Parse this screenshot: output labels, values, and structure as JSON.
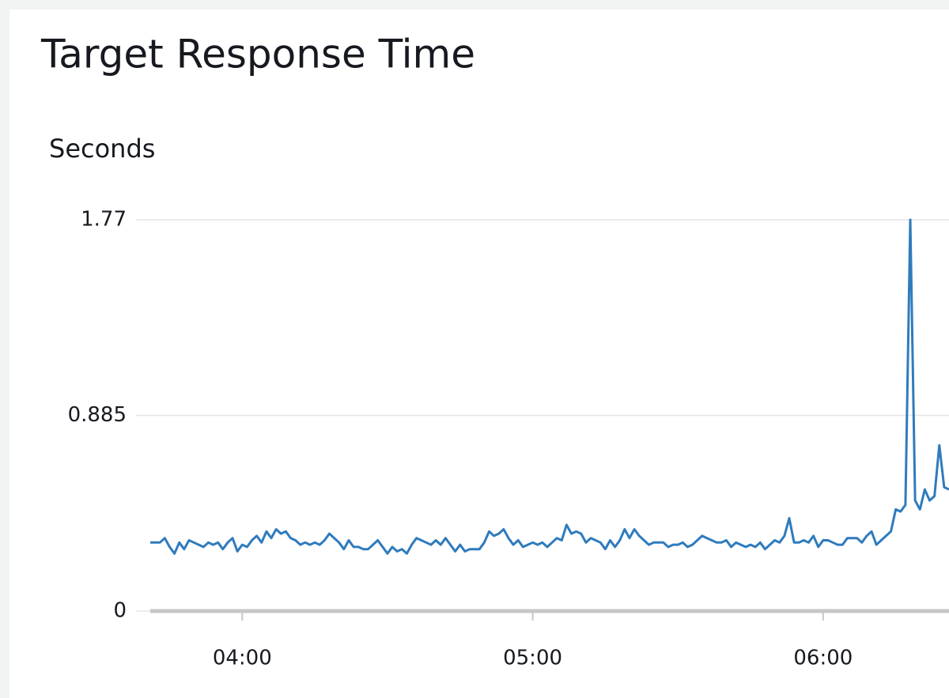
{
  "chart_data": {
    "type": "line",
    "title": "Target Response Time",
    "ylabel": "Seconds",
    "color": "#2f7bbd",
    "ylim": [
      0,
      1.77
    ],
    "yticks": [
      0,
      0.885,
      1.77
    ],
    "grid": true,
    "xlim": [
      221,
      386
    ],
    "xticks": [
      {
        "value": 240,
        "label": "04:00"
      },
      {
        "value": 300,
        "label": "05:00"
      },
      {
        "value": 360,
        "label": "06:00"
      }
    ],
    "x": [
      221,
      222,
      223,
      224,
      225,
      226,
      227,
      228,
      229,
      230,
      231,
      232,
      233,
      234,
      235,
      236,
      237,
      238,
      239,
      240,
      241,
      242,
      243,
      244,
      245,
      246,
      247,
      248,
      249,
      250,
      251,
      252,
      253,
      254,
      255,
      256,
      257,
      258,
      259,
      260,
      261,
      262,
      263,
      264,
      265,
      266,
      267,
      268,
      269,
      270,
      271,
      272,
      273,
      274,
      275,
      276,
      277,
      278,
      279,
      280,
      281,
      282,
      283,
      284,
      285,
      286,
      287,
      288,
      289,
      290,
      291,
      292,
      293,
      294,
      295,
      296,
      297,
      298,
      299,
      300,
      301,
      302,
      303,
      304,
      305,
      306,
      307,
      308,
      309,
      310,
      311,
      312,
      313,
      314,
      315,
      316,
      317,
      318,
      319,
      320,
      321,
      322,
      323,
      324,
      325,
      326,
      327,
      328,
      329,
      330,
      331,
      332,
      333,
      334,
      335,
      336,
      337,
      338,
      339,
      340,
      341,
      342,
      343,
      344,
      345,
      346,
      347,
      348,
      349,
      350,
      351,
      352,
      353,
      354,
      355,
      356,
      357,
      358,
      359,
      360,
      361,
      362,
      363,
      364,
      365,
      366,
      367,
      368,
      369,
      370,
      371,
      372,
      373,
      374,
      375,
      376,
      377,
      378,
      379,
      380,
      381,
      382,
      383,
      384,
      385,
      386
    ],
    "values": [
      0.31,
      0.31,
      0.31,
      0.33,
      0.29,
      0.26,
      0.31,
      0.28,
      0.32,
      0.31,
      0.3,
      0.29,
      0.31,
      0.3,
      0.31,
      0.28,
      0.31,
      0.33,
      0.27,
      0.3,
      0.29,
      0.32,
      0.34,
      0.31,
      0.36,
      0.33,
      0.37,
      0.35,
      0.36,
      0.33,
      0.32,
      0.3,
      0.31,
      0.3,
      0.31,
      0.3,
      0.32,
      0.35,
      0.33,
      0.31,
      0.28,
      0.32,
      0.29,
      0.29,
      0.28,
      0.28,
      0.3,
      0.32,
      0.29,
      0.26,
      0.29,
      0.27,
      0.28,
      0.26,
      0.3,
      0.33,
      0.32,
      0.31,
      0.3,
      0.32,
      0.3,
      0.33,
      0.3,
      0.27,
      0.3,
      0.27,
      0.28,
      0.28,
      0.28,
      0.31,
      0.36,
      0.34,
      0.35,
      0.37,
      0.33,
      0.3,
      0.32,
      0.29,
      0.3,
      0.31,
      0.3,
      0.31,
      0.29,
      0.31,
      0.33,
      0.32,
      0.39,
      0.35,
      0.36,
      0.35,
      0.31,
      0.33,
      0.32,
      0.31,
      0.28,
      0.32,
      0.29,
      0.32,
      0.37,
      0.33,
      0.37,
      0.34,
      0.32,
      0.3,
      0.31,
      0.31,
      0.31,
      0.29,
      0.3,
      0.3,
      0.31,
      0.29,
      0.3,
      0.32,
      0.34,
      0.33,
      0.32,
      0.31,
      0.31,
      0.32,
      0.29,
      0.31,
      0.3,
      0.29,
      0.3,
      0.29,
      0.31,
      0.28,
      0.3,
      0.32,
      0.31,
      0.34,
      0.42,
      0.31,
      0.31,
      0.32,
      0.31,
      0.34,
      0.29,
      0.32,
      0.32,
      0.31,
      0.3,
      0.3,
      0.33,
      0.33,
      0.33,
      0.31,
      0.34,
      0.36,
      0.3,
      0.32,
      0.34,
      0.36,
      0.46,
      0.45,
      0.48,
      1.77,
      0.5,
      0.46,
      0.55,
      0.5,
      0.52,
      0.75,
      0.56,
      0.55
    ]
  }
}
